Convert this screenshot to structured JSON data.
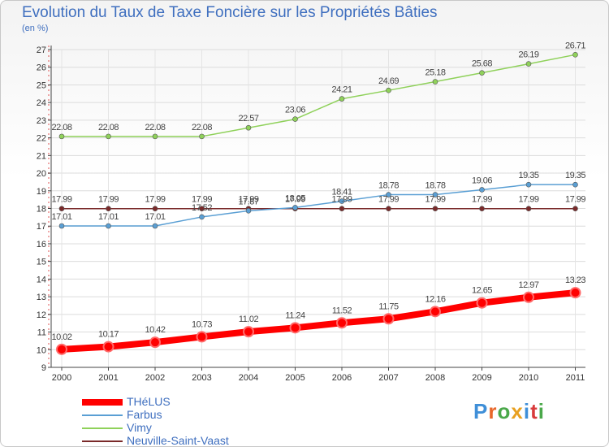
{
  "title": "Evolution du Taux de Taxe Foncière sur les Propriétés Bâties",
  "unit_label": "(en %)",
  "logo": {
    "text": "Proxiti",
    "letter_colors": [
      "#3f8fd8",
      "#e8672a",
      "#4aa84a",
      "#e8a020",
      "#3f8fd8",
      "#d83a3a",
      "#4aa84a"
    ]
  },
  "chart_data": {
    "type": "line",
    "title": "Evolution du Taux de Taxe Foncière sur les Propriétés Bâties",
    "ylabel": "(en %)",
    "x": [
      "2000",
      "2001",
      "2002",
      "2003",
      "2004",
      "2005",
      "2006",
      "2007",
      "2008",
      "2009",
      "2010",
      "2011"
    ],
    "ylim": [
      9,
      27
    ],
    "yticks": [
      "9",
      "10",
      "11",
      "12",
      "13",
      "14",
      "15",
      "16",
      "17",
      "18",
      "19",
      "20",
      "21",
      "22",
      "23",
      "24",
      "25",
      "26",
      "27"
    ],
    "grid": true,
    "legend_position": "bottom-left",
    "series": [
      {
        "name": "THéLUS",
        "color": "#ff0000",
        "width": 8,
        "marker": 6,
        "values": [
          10.02,
          10.17,
          10.42,
          10.73,
          11.02,
          11.24,
          11.52,
          11.75,
          12.16,
          12.65,
          12.97,
          13.23
        ],
        "labels": [
          "10.02",
          "10.17",
          "10.42",
          "10.73",
          "11.02",
          "11.24",
          "11.52",
          "11.75",
          "12.16",
          "12.65",
          "12.97",
          "13.23"
        ]
      },
      {
        "name": "Farbus",
        "color": "#5a9fd4",
        "width": 1.5,
        "marker": 3,
        "values": [
          17.01,
          17.01,
          17.01,
          17.52,
          17.87,
          18.05,
          18.41,
          18.78,
          18.78,
          19.06,
          19.35,
          19.35
        ],
        "labels": [
          "17.01",
          "17.01",
          "17.01",
          "17.52",
          "17.87",
          "18.05",
          "18.41",
          "18.78",
          "18.78",
          "19.06",
          "19.35",
          "19.35"
        ]
      },
      {
        "name": "Vimy",
        "color": "#8fd15a",
        "width": 1.5,
        "marker": 3,
        "values": [
          22.08,
          22.08,
          22.08,
          22.08,
          22.57,
          23.06,
          24.21,
          24.69,
          25.18,
          25.68,
          26.19,
          26.71
        ],
        "labels": [
          "22.08",
          "22.08",
          "22.08",
          "22.08",
          "22.57",
          "23.06",
          "24.21",
          "24.69",
          "25.18",
          "25.68",
          "26.19",
          "26.71"
        ]
      },
      {
        "name": "Neuville-Saint-Vaast",
        "color": "#7a2a2a",
        "width": 1.5,
        "marker": 3,
        "values": [
          17.99,
          17.99,
          17.99,
          17.99,
          17.99,
          17.99,
          17.99,
          17.99,
          17.99,
          17.99,
          17.99,
          17.99
        ],
        "labels": [
          "17.99",
          "17.99",
          "17.99",
          "17.99",
          "17.99",
          "17.99",
          "17.99",
          "17.99",
          "17.99",
          "17.99",
          "17.99",
          "17.99"
        ]
      }
    ]
  }
}
